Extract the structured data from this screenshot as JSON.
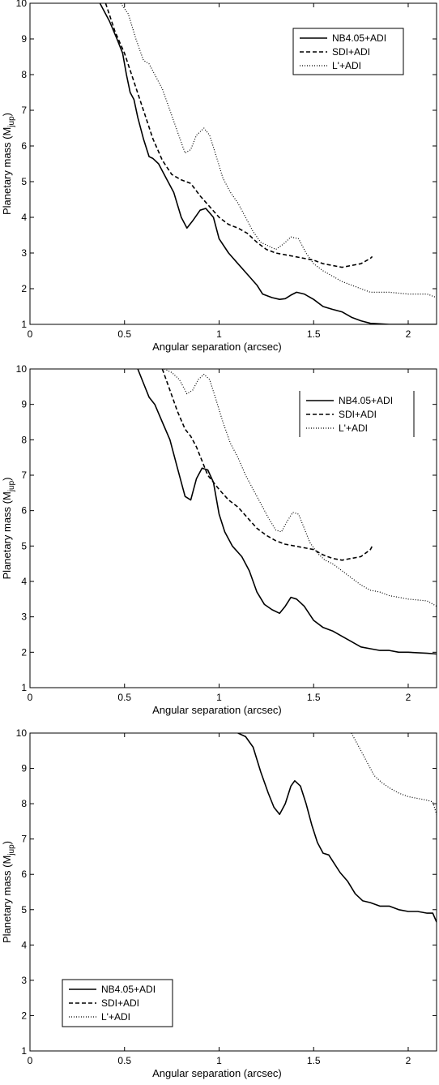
{
  "chart_data": [
    {
      "type": "line",
      "xlabel": "Angular separation (arcsec)",
      "ylabel": "Planetary mass (M",
      "ylabel_sub": "jup",
      "ylabel_close": ")",
      "xlim": [
        0,
        2.15
      ],
      "ylim": [
        1,
        10
      ],
      "xticks": [
        0,
        0.5,
        1,
        1.5,
        2
      ],
      "xtick_labels": [
        "0",
        "0.5",
        "1",
        "1.5",
        "2"
      ],
      "yticks": [
        1,
        2,
        3,
        4,
        5,
        6,
        7,
        8,
        9,
        10
      ],
      "ytick_labels": [
        "1",
        "2",
        "3",
        "4",
        "5",
        "6",
        "7",
        "8",
        "9",
        "10"
      ],
      "grid": false,
      "legend_position": "top-right",
      "series": [
        {
          "name": "NB4.05+ADI",
          "style": "solid",
          "x": [
            0.37,
            0.42,
            0.46,
            0.49,
            0.51,
            0.53,
            0.55,
            0.57,
            0.6,
            0.63,
            0.65,
            0.68,
            0.72,
            0.76,
            0.8,
            0.83,
            0.86,
            0.9,
            0.93,
            0.97,
            1.0,
            1.05,
            1.1,
            1.15,
            1.2,
            1.23,
            1.28,
            1.32,
            1.35,
            1.38,
            1.41,
            1.45,
            1.5,
            1.55,
            1.6,
            1.65,
            1.7,
            1.75,
            1.8,
            1.9,
            2.0,
            2.15
          ],
          "y": [
            10,
            9.5,
            9.0,
            8.6,
            8.0,
            7.5,
            7.3,
            6.8,
            6.2,
            5.7,
            5.65,
            5.5,
            5.1,
            4.7,
            4.0,
            3.7,
            3.9,
            4.2,
            4.25,
            4.0,
            3.4,
            3.0,
            2.7,
            2.4,
            2.1,
            1.85,
            1.75,
            1.7,
            1.72,
            1.82,
            1.9,
            1.85,
            1.7,
            1.5,
            1.42,
            1.35,
            1.2,
            1.1,
            1.03,
            1.0,
            1.0,
            1.0
          ]
        },
        {
          "name": "SDI+ADI",
          "style": "dashed",
          "x": [
            0.4,
            0.45,
            0.5,
            0.55,
            0.6,
            0.65,
            0.7,
            0.75,
            0.8,
            0.85,
            0.9,
            0.95,
            1.0,
            1.05,
            1.1,
            1.15,
            1.2,
            1.25,
            1.3,
            1.35,
            1.4,
            1.45,
            1.5,
            1.55,
            1.6,
            1.65,
            1.7,
            1.75,
            1.8,
            1.81
          ],
          "y": [
            10,
            9.2,
            8.6,
            7.8,
            7.0,
            6.2,
            5.6,
            5.2,
            5.05,
            4.95,
            4.6,
            4.3,
            4.0,
            3.8,
            3.7,
            3.55,
            3.3,
            3.1,
            3.0,
            2.95,
            2.9,
            2.85,
            2.8,
            2.7,
            2.65,
            2.6,
            2.65,
            2.7,
            2.85,
            2.9
          ]
        },
        {
          "name": "L'+ADI",
          "style": "dotted",
          "x": [
            0.48,
            0.52,
            0.56,
            0.6,
            0.63,
            0.66,
            0.7,
            0.74,
            0.78,
            0.82,
            0.85,
            0.88,
            0.92,
            0.95,
            0.98,
            1.02,
            1.06,
            1.1,
            1.14,
            1.18,
            1.22,
            1.26,
            1.3,
            1.34,
            1.38,
            1.42,
            1.46,
            1.5,
            1.55,
            1.6,
            1.65,
            1.7,
            1.75,
            1.8,
            1.9,
            2.0,
            2.1,
            2.15
          ],
          "y": [
            10,
            9.7,
            9.0,
            8.4,
            8.3,
            8.0,
            7.6,
            7.0,
            6.4,
            5.8,
            5.9,
            6.3,
            6.5,
            6.3,
            5.8,
            5.1,
            4.7,
            4.4,
            4.0,
            3.6,
            3.3,
            3.2,
            3.1,
            3.25,
            3.45,
            3.4,
            3.0,
            2.7,
            2.5,
            2.35,
            2.2,
            2.1,
            2.0,
            1.9,
            1.9,
            1.85,
            1.85,
            1.75
          ]
        }
      ]
    },
    {
      "type": "line",
      "xlabel": "Angular separation (arcsec)",
      "ylabel": "Planetary mass (M",
      "ylabel_sub": "jup",
      "ylabel_close": ")",
      "xlim": [
        0,
        2.15
      ],
      "ylim": [
        1,
        10
      ],
      "xticks": [
        0,
        0.5,
        1,
        1.5,
        2
      ],
      "xtick_labels": [
        "0",
        "0.5",
        "1",
        "1.5",
        "2"
      ],
      "yticks": [
        1,
        2,
        3,
        4,
        5,
        6,
        7,
        8,
        9,
        10
      ],
      "ytick_labels": [
        "1",
        "2",
        "3",
        "4",
        "5",
        "6",
        "7",
        "8",
        "9",
        "10"
      ],
      "grid": false,
      "legend_position": "top-right",
      "series": [
        {
          "name": "NB4.05+ADI",
          "style": "solid",
          "x": [
            0.57,
            0.6,
            0.63,
            0.66,
            0.7,
            0.74,
            0.78,
            0.82,
            0.85,
            0.88,
            0.91,
            0.94,
            0.97,
            1.0,
            1.03,
            1.07,
            1.12,
            1.16,
            1.2,
            1.24,
            1.28,
            1.32,
            1.35,
            1.38,
            1.41,
            1.45,
            1.5,
            1.55,
            1.6,
            1.65,
            1.7,
            1.75,
            1.8,
            1.85,
            1.9,
            1.95,
            2.0,
            2.1,
            2.15
          ],
          "y": [
            10,
            9.6,
            9.2,
            9.0,
            8.5,
            8.0,
            7.2,
            6.4,
            6.3,
            6.9,
            7.2,
            7.15,
            6.8,
            5.9,
            5.4,
            5.0,
            4.7,
            4.3,
            3.7,
            3.35,
            3.2,
            3.1,
            3.3,
            3.55,
            3.5,
            3.3,
            2.9,
            2.7,
            2.6,
            2.45,
            2.3,
            2.15,
            2.1,
            2.05,
            2.05,
            2.0,
            2.0,
            1.97,
            1.95
          ]
        },
        {
          "name": "SDI+ADI",
          "style": "dashed",
          "x": [
            0.7,
            0.74,
            0.78,
            0.82,
            0.85,
            0.88,
            0.91,
            0.94,
            0.97,
            1.0,
            1.05,
            1.1,
            1.15,
            1.2,
            1.25,
            1.3,
            1.35,
            1.4,
            1.45,
            1.5,
            1.55,
            1.6,
            1.65,
            1.7,
            1.75,
            1.8,
            1.81
          ],
          "y": [
            10,
            9.4,
            8.8,
            8.3,
            8.1,
            7.8,
            7.4,
            7.0,
            6.8,
            6.6,
            6.3,
            6.1,
            5.8,
            5.5,
            5.3,
            5.15,
            5.05,
            5.0,
            4.95,
            4.9,
            4.75,
            4.65,
            4.6,
            4.65,
            4.7,
            4.9,
            5.0
          ]
        },
        {
          "name": "L'+ADI",
          "style": "dotted",
          "x": [
            0.71,
            0.75,
            0.79,
            0.83,
            0.86,
            0.89,
            0.92,
            0.95,
            0.98,
            1.02,
            1.06,
            1.1,
            1.14,
            1.18,
            1.22,
            1.26,
            1.3,
            1.33,
            1.36,
            1.39,
            1.42,
            1.45,
            1.48,
            1.52,
            1.56,
            1.6,
            1.65,
            1.7,
            1.75,
            1.8,
            1.85,
            1.9,
            1.95,
            2.0,
            2.1,
            2.15
          ],
          "y": [
            10,
            9.9,
            9.7,
            9.3,
            9.4,
            9.7,
            9.85,
            9.7,
            9.2,
            8.5,
            7.9,
            7.5,
            7.0,
            6.6,
            6.2,
            5.8,
            5.45,
            5.4,
            5.7,
            5.95,
            5.9,
            5.5,
            5.1,
            4.8,
            4.6,
            4.5,
            4.3,
            4.1,
            3.9,
            3.75,
            3.7,
            3.6,
            3.55,
            3.5,
            3.45,
            3.3
          ]
        }
      ]
    },
    {
      "type": "line",
      "xlabel": "Angular separation (arcsec)",
      "ylabel": "Planetary mass (M",
      "ylabel_sub": "jup",
      "ylabel_close": ")",
      "xlim": [
        0,
        2.15
      ],
      "ylim": [
        1,
        10
      ],
      "xticks": [
        0,
        0.5,
        1,
        1.5,
        2
      ],
      "xtick_labels": [
        "0",
        "0.5",
        "1",
        "1.5",
        "2"
      ],
      "yticks": [
        1,
        2,
        3,
        4,
        5,
        6,
        7,
        8,
        9,
        10
      ],
      "ytick_labels": [
        "1",
        "2",
        "3",
        "4",
        "5",
        "6",
        "7",
        "8",
        "9",
        "10"
      ],
      "grid": false,
      "legend_position": "bottom-left",
      "series": [
        {
          "name": "NB4.05+ADI",
          "style": "solid",
          "x": [
            1.1,
            1.14,
            1.18,
            1.22,
            1.26,
            1.29,
            1.32,
            1.35,
            1.38,
            1.4,
            1.43,
            1.46,
            1.49,
            1.52,
            1.55,
            1.58,
            1.61,
            1.64,
            1.68,
            1.72,
            1.76,
            1.8,
            1.85,
            1.9,
            1.95,
            2.0,
            2.05,
            2.1,
            2.13,
            2.15
          ],
          "y": [
            10,
            9.9,
            9.6,
            8.9,
            8.3,
            7.9,
            7.7,
            8.0,
            8.5,
            8.65,
            8.5,
            8.0,
            7.4,
            6.9,
            6.6,
            6.55,
            6.3,
            6.05,
            5.8,
            5.45,
            5.25,
            5.2,
            5.1,
            5.1,
            5.0,
            4.95,
            4.95,
            4.9,
            4.9,
            4.65
          ]
        },
        {
          "name": "SDI+ADI",
          "style": "dashed",
          "x": [],
          "y": []
        },
        {
          "name": "L'+ADI",
          "style": "dotted",
          "x": [
            1.7,
            1.74,
            1.78,
            1.82,
            1.86,
            1.9,
            1.95,
            2.0,
            2.05,
            2.1,
            2.13,
            2.15
          ],
          "y": [
            10,
            9.6,
            9.2,
            8.8,
            8.6,
            8.45,
            8.3,
            8.2,
            8.15,
            8.1,
            8.05,
            7.7
          ]
        }
      ]
    }
  ]
}
